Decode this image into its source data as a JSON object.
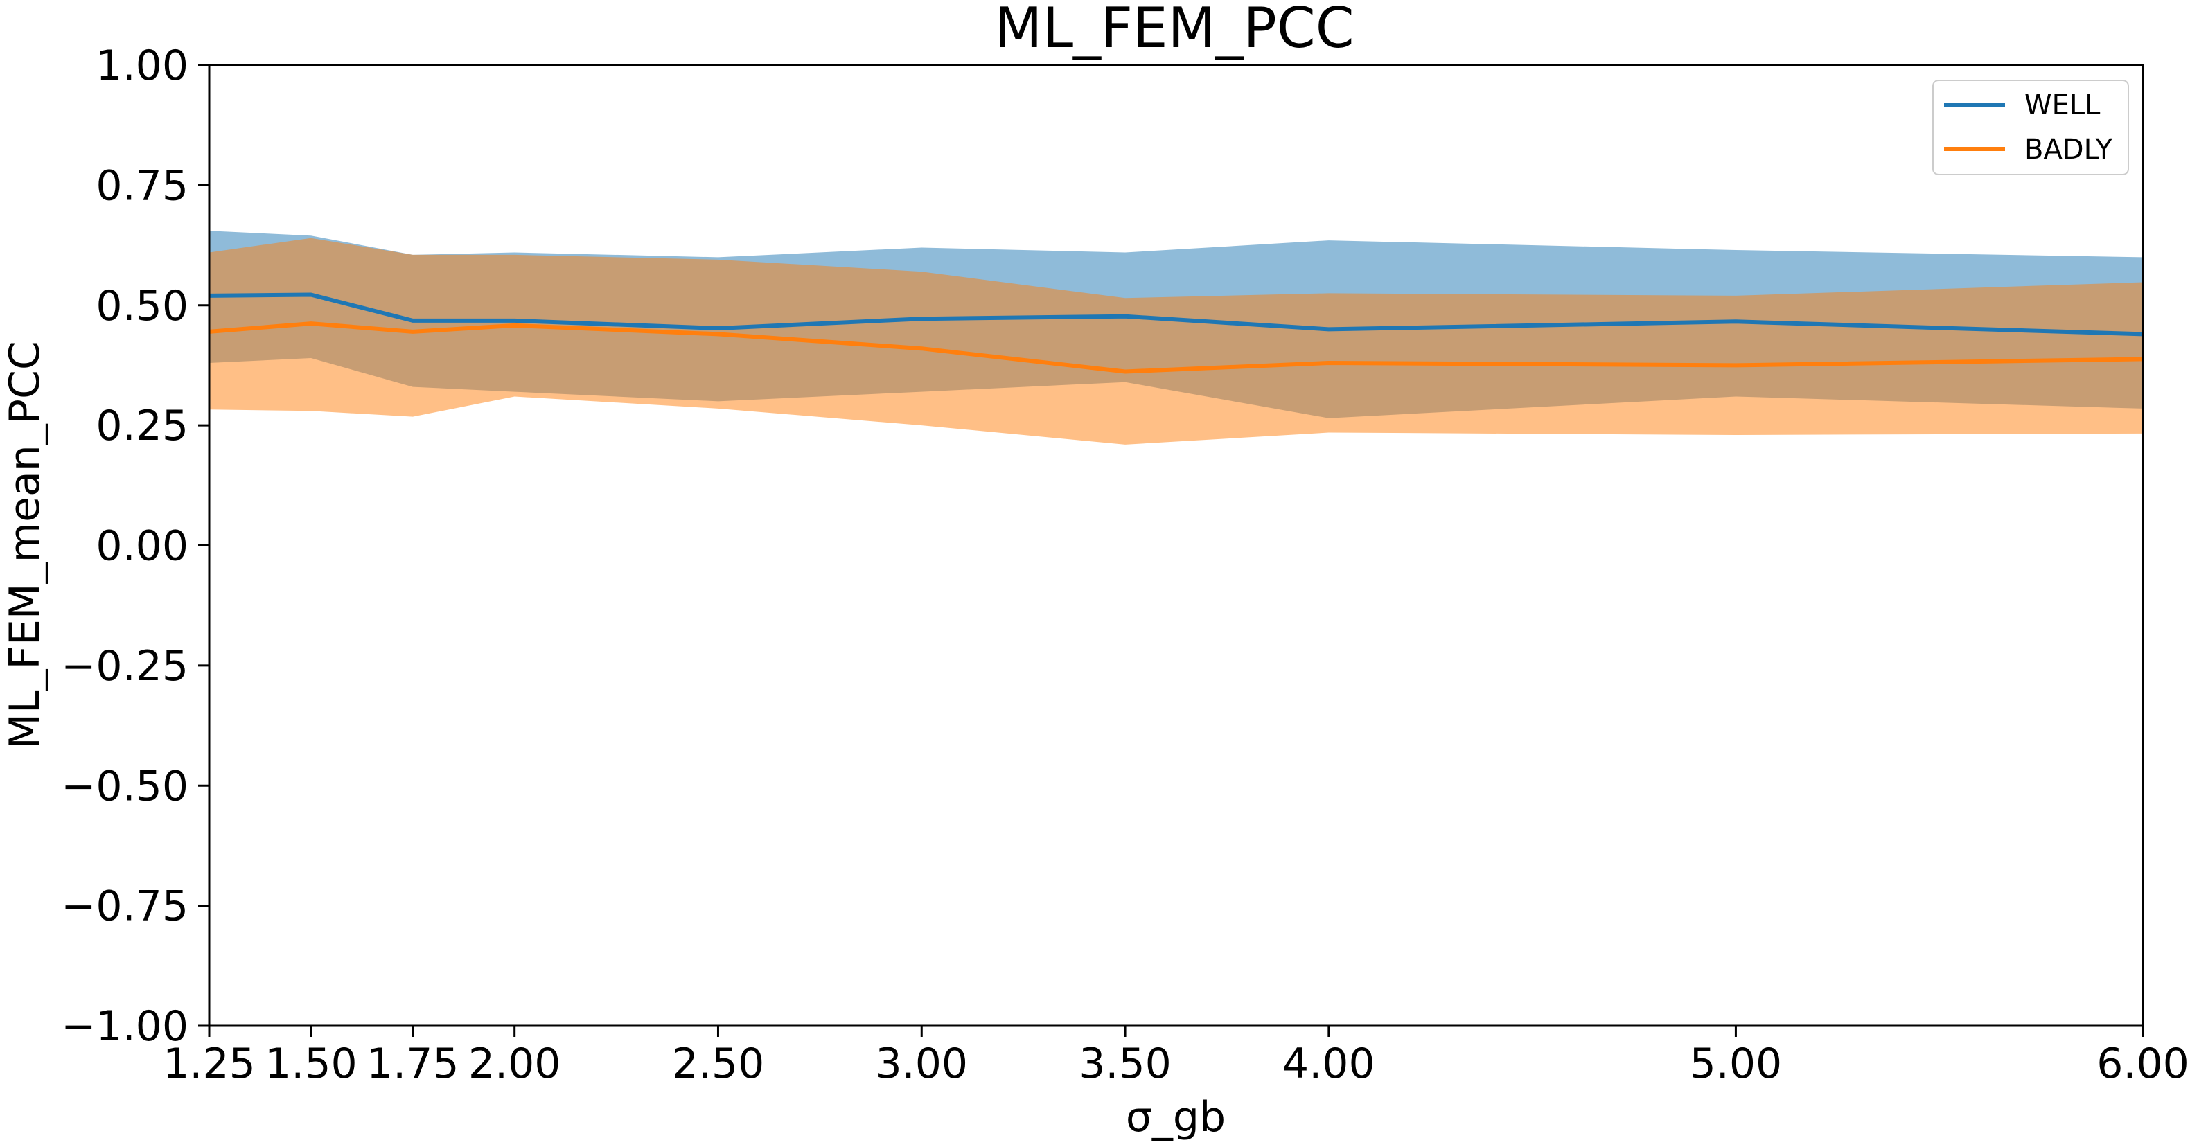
{
  "chart_data": {
    "type": "line",
    "title": "ML_FEM_PCC",
    "xlabel": "σ_gb",
    "ylabel": "ML_FEM_mean_PCC",
    "xlim": [
      1.25,
      6.0
    ],
    "ylim": [
      -1.0,
      1.0
    ],
    "x": [
      1.25,
      1.5,
      1.75,
      2.0,
      2.5,
      3.0,
      3.5,
      4.0,
      5.0,
      6.0
    ],
    "x_tick_labels": [
      "1.25",
      "1.50",
      "1.75",
      "2.00",
      "2.50",
      "3.00",
      "3.50",
      "4.00",
      "5.00",
      "6.00"
    ],
    "y_ticks": [
      -1.0,
      -0.75,
      -0.5,
      -0.25,
      0.0,
      0.25,
      0.5,
      0.75,
      1.0
    ],
    "y_tick_labels": [
      "−1.00",
      "−0.75",
      "−0.50",
      "−0.25",
      "0.00",
      "0.25",
      "0.50",
      "0.75",
      "1.00"
    ],
    "grid": false,
    "legend_position": "top-right",
    "series": [
      {
        "name": "WELL",
        "color": "#1f77b4",
        "band_color": "#1f77b4",
        "band_opacity": 0.5,
        "mean": [
          0.52,
          0.522,
          0.468,
          0.468,
          0.452,
          0.472,
          0.477,
          0.45,
          0.466,
          0.44
        ],
        "upper": [
          0.655,
          0.645,
          0.605,
          0.61,
          0.6,
          0.62,
          0.61,
          0.635,
          0.615,
          0.6
        ],
        "lower": [
          0.38,
          0.39,
          0.33,
          0.32,
          0.3,
          0.32,
          0.34,
          0.265,
          0.31,
          0.285
        ]
      },
      {
        "name": "BADLY",
        "color": "#ff7f0e",
        "band_color": "#ff7f0e",
        "band_opacity": 0.5,
        "mean": [
          0.445,
          0.462,
          0.445,
          0.458,
          0.44,
          0.41,
          0.362,
          0.38,
          0.375,
          0.388
        ],
        "upper": [
          0.61,
          0.64,
          0.605,
          0.605,
          0.595,
          0.57,
          0.515,
          0.525,
          0.52,
          0.548
        ],
        "lower": [
          0.283,
          0.28,
          0.268,
          0.31,
          0.285,
          0.25,
          0.21,
          0.235,
          0.23,
          0.233
        ]
      }
    ]
  }
}
